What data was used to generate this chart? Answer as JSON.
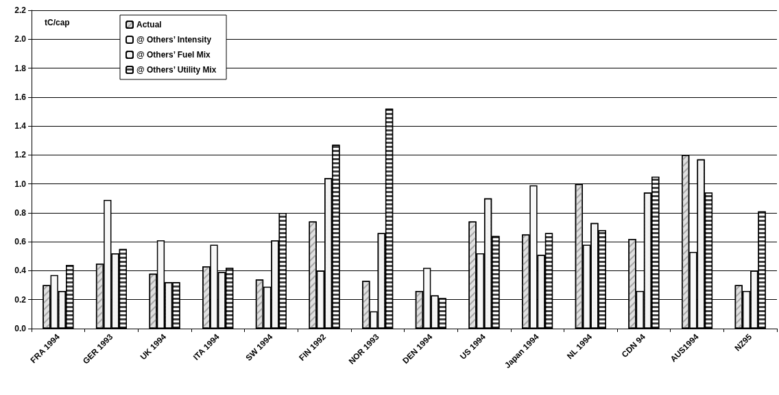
{
  "chart_data": {
    "type": "bar",
    "ylabel": "tC/cap",
    "categories": [
      "FRA 1994",
      "GER 1993",
      "UK 1994",
      "ITA 1994",
      "SW 1994",
      "FIN 1992",
      "NOR 1993",
      "DEN 1994",
      "US 1994",
      "Japan 1994",
      "NL 1994",
      "CDN 94",
      "AUS1994",
      "NZ95"
    ],
    "series": [
      {
        "name": "Actual",
        "color": "#e0e0e0",
        "values": [
          0.3,
          0.45,
          0.38,
          0.43,
          0.34,
          0.74,
          0.33,
          0.26,
          0.74,
          0.65,
          1.0,
          0.62,
          1.2,
          0.3
        ]
      },
      {
        "name": "@ Others’ Intensity",
        "color": "#f8f8f8",
        "values": [
          0.37,
          0.89,
          0.61,
          0.58,
          0.29,
          0.4,
          0.12,
          0.42,
          0.52,
          0.99,
          0.58,
          0.26,
          0.53,
          0.26
        ]
      },
      {
        "name": "@ Others’ Fuel Mix",
        "color": "#f4f4f4",
        "values": [
          0.26,
          0.52,
          0.32,
          0.39,
          0.61,
          1.04,
          0.66,
          0.23,
          0.9,
          0.51,
          0.73,
          0.94,
          1.17,
          0.4
        ]
      },
      {
        "name": "@ Others’ Utility Mix",
        "color": "#404040",
        "values": [
          0.44,
          0.55,
          0.32,
          0.42,
          0.8,
          1.27,
          1.52,
          0.21,
          0.64,
          0.66,
          0.68,
          1.05,
          0.94,
          0.81
        ]
      }
    ],
    "ylim": [
      0,
      2.2
    ],
    "yticks": [
      {
        "value": 0,
        "label": "0.0"
      },
      0.2,
      0.4,
      0.6,
      0.8,
      {
        "value": 1,
        "label": "1.0"
      },
      1.2,
      1.4,
      1.6,
      1.8,
      {
        "value": 2,
        "label": "2.0"
      },
      2.2
    ],
    "grid": "y",
    "legend": "top left"
  }
}
